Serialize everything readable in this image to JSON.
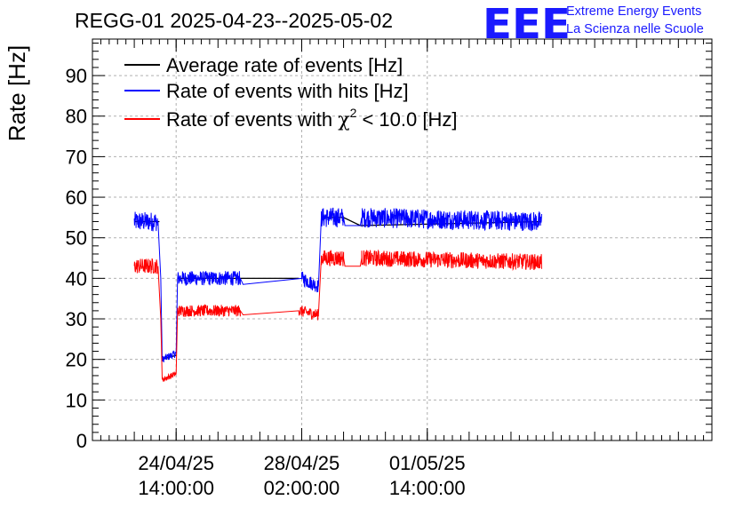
{
  "header": {
    "title": "REGG-01 2025-04-23--2025-05-02",
    "logo_mark": "EEE",
    "logo_line1": "Extreme Energy Events",
    "logo_line2": "La Scienza nelle Scuole"
  },
  "colors": {
    "average": "#000000",
    "hits": "#0000ff",
    "chi2": "#ff0000",
    "logo": "#1a1aff",
    "grid": "#b0b0b0"
  },
  "chart_data": {
    "type": "line",
    "ylabel": "Rate [Hz]",
    "ylim": [
      0,
      99
    ],
    "yticks": [
      0,
      10,
      20,
      30,
      40,
      50,
      60,
      70,
      80,
      90
    ],
    "x_unit": "hours",
    "xlim_hours": [
      0,
      222
    ],
    "x_tick_labels": [
      {
        "date": "24/04/25",
        "time": "14:00:00",
        "hours": 30
      },
      {
        "date": "28/04/25",
        "time": "02:00:00",
        "hours": 75
      },
      {
        "date": "01/05/25",
        "time": "14:00:00",
        "hours": 120
      }
    ],
    "grid": true,
    "legend_placement": "top-left",
    "series": [
      {
        "name": "Average rate of events [Hz]",
        "color": "#000000",
        "segments": [
          [
            [
              15,
              54
            ],
            [
              24,
              54
            ]
          ],
          [
            [
              24.8,
              20
            ],
            [
              30,
              21
            ]
          ],
          [
            [
              30.5,
              40
            ],
            [
              53,
              40
            ],
            [
              74,
              40
            ]
          ],
          [
            [
              83,
              55
            ],
            [
              90,
              55
            ],
            [
              96,
              53
            ],
            [
              161,
              54
            ]
          ]
        ]
      },
      {
        "name": "Rate of events with hits [Hz]",
        "color": "#0000ff",
        "segments": [
          [
            [
              15,
              54
            ],
            [
              23.5,
              54
            ],
            [
              24.5,
              40
            ],
            [
              25,
              20
            ],
            [
              30,
              21.5
            ],
            [
              30.5,
              40
            ],
            [
              53,
              40
            ],
            [
              54,
              38.5
            ],
            [
              75,
              40
            ],
            [
              81,
              38
            ],
            [
              82,
              55
            ],
            [
              90,
              55
            ],
            [
              90.5,
              53
            ],
            [
              96,
              53
            ],
            [
              96.5,
              55
            ],
            [
              161,
              54
            ]
          ]
        ]
      },
      {
        "name": "Rate of events with χ² < 10.0 [Hz]",
        "color": "#ff0000",
        "segments": [
          [
            [
              15,
              43
            ],
            [
              23.5,
              43
            ],
            [
              24.5,
              30
            ],
            [
              25,
              15
            ],
            [
              30,
              16.5
            ],
            [
              30.5,
              32
            ],
            [
              53,
              32
            ],
            [
              54,
              31
            ],
            [
              74,
              32
            ],
            [
              81,
              31
            ],
            [
              82,
              45
            ],
            [
              90,
              45
            ],
            [
              90.5,
              43
            ],
            [
              96,
              43
            ],
            [
              96.5,
              45
            ],
            [
              161,
              44
            ]
          ]
        ]
      }
    ],
    "legend": [
      {
        "label": "Average rate of events [Hz]",
        "color": "#000000"
      },
      {
        "label": "Rate of events with hits [Hz]",
        "color": "#0000ff"
      },
      {
        "label_prefix": "Rate of events with ",
        "label_symbol": "χ",
        "label_sup": "2",
        "label_suffix": " < 10.0 [Hz]",
        "color": "#ff0000"
      }
    ]
  }
}
